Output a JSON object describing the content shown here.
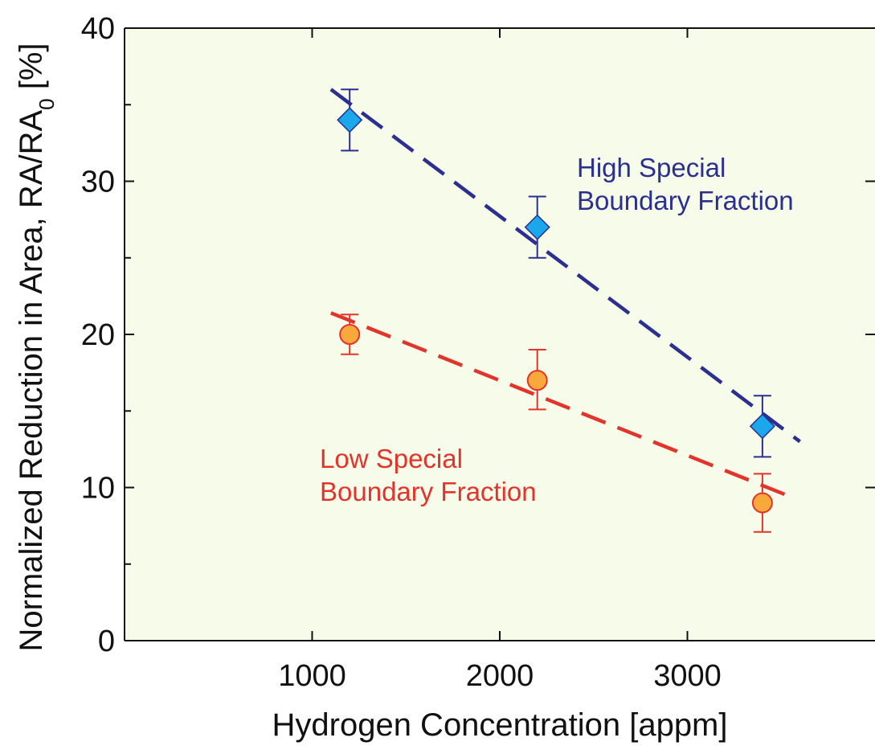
{
  "chart_data": {
    "type": "scatter",
    "xlabel": "Hydrogen Concentration [appm]",
    "ylabel": "Normalized Reduction in Area, RA/RA",
    "ylabel_subscript": "0",
    "ylabel_unit": " [%]",
    "xlim": [
      0,
      4000
    ],
    "ylim": [
      0,
      40
    ],
    "xticks": [
      1000,
      2000,
      3000
    ],
    "xtick_labels": [
      "1000",
      "2000",
      "3000"
    ],
    "yticks": [
      0,
      10,
      20,
      30,
      40
    ],
    "ytick_labels": [
      "0",
      "10",
      "20",
      "30",
      "40"
    ],
    "yminor_ticks": [
      5,
      15,
      25,
      35
    ],
    "grid": false,
    "plot_background": "#f7fbe9",
    "series": [
      {
        "key": "high",
        "marker": "diamond",
        "marker_color": "#1aa7ec",
        "line_color": "#2b2f8f",
        "x": [
          1200,
          2200,
          3400
        ],
        "y": [
          34,
          27,
          14
        ],
        "err_low": [
          32,
          25,
          12
        ],
        "err_high": [
          36,
          29,
          16
        ],
        "trend": {
          "x": [
            1100,
            3600
          ],
          "y": [
            36,
            13
          ]
        }
      },
      {
        "key": "low",
        "marker": "circle",
        "marker_color": "#f7a93b",
        "line_color": "#e2342b",
        "x": [
          1200,
          2200,
          3400
        ],
        "y": [
          20,
          17,
          9
        ],
        "err_low": [
          18.7,
          15.1,
          7.1
        ],
        "err_high": [
          21.3,
          19,
          10.9
        ],
        "trend": {
          "x": [
            1100,
            3550
          ],
          "y": [
            21.4,
            9.4
          ]
        }
      }
    ],
    "annotations": [
      {
        "series": "high",
        "lines": [
          "High Special",
          "Boundary Fraction"
        ],
        "color": "#2b2f8f"
      },
      {
        "series": "low",
        "lines": [
          "Low Special",
          "Boundary Fraction"
        ],
        "color": "#e2342b"
      }
    ]
  }
}
